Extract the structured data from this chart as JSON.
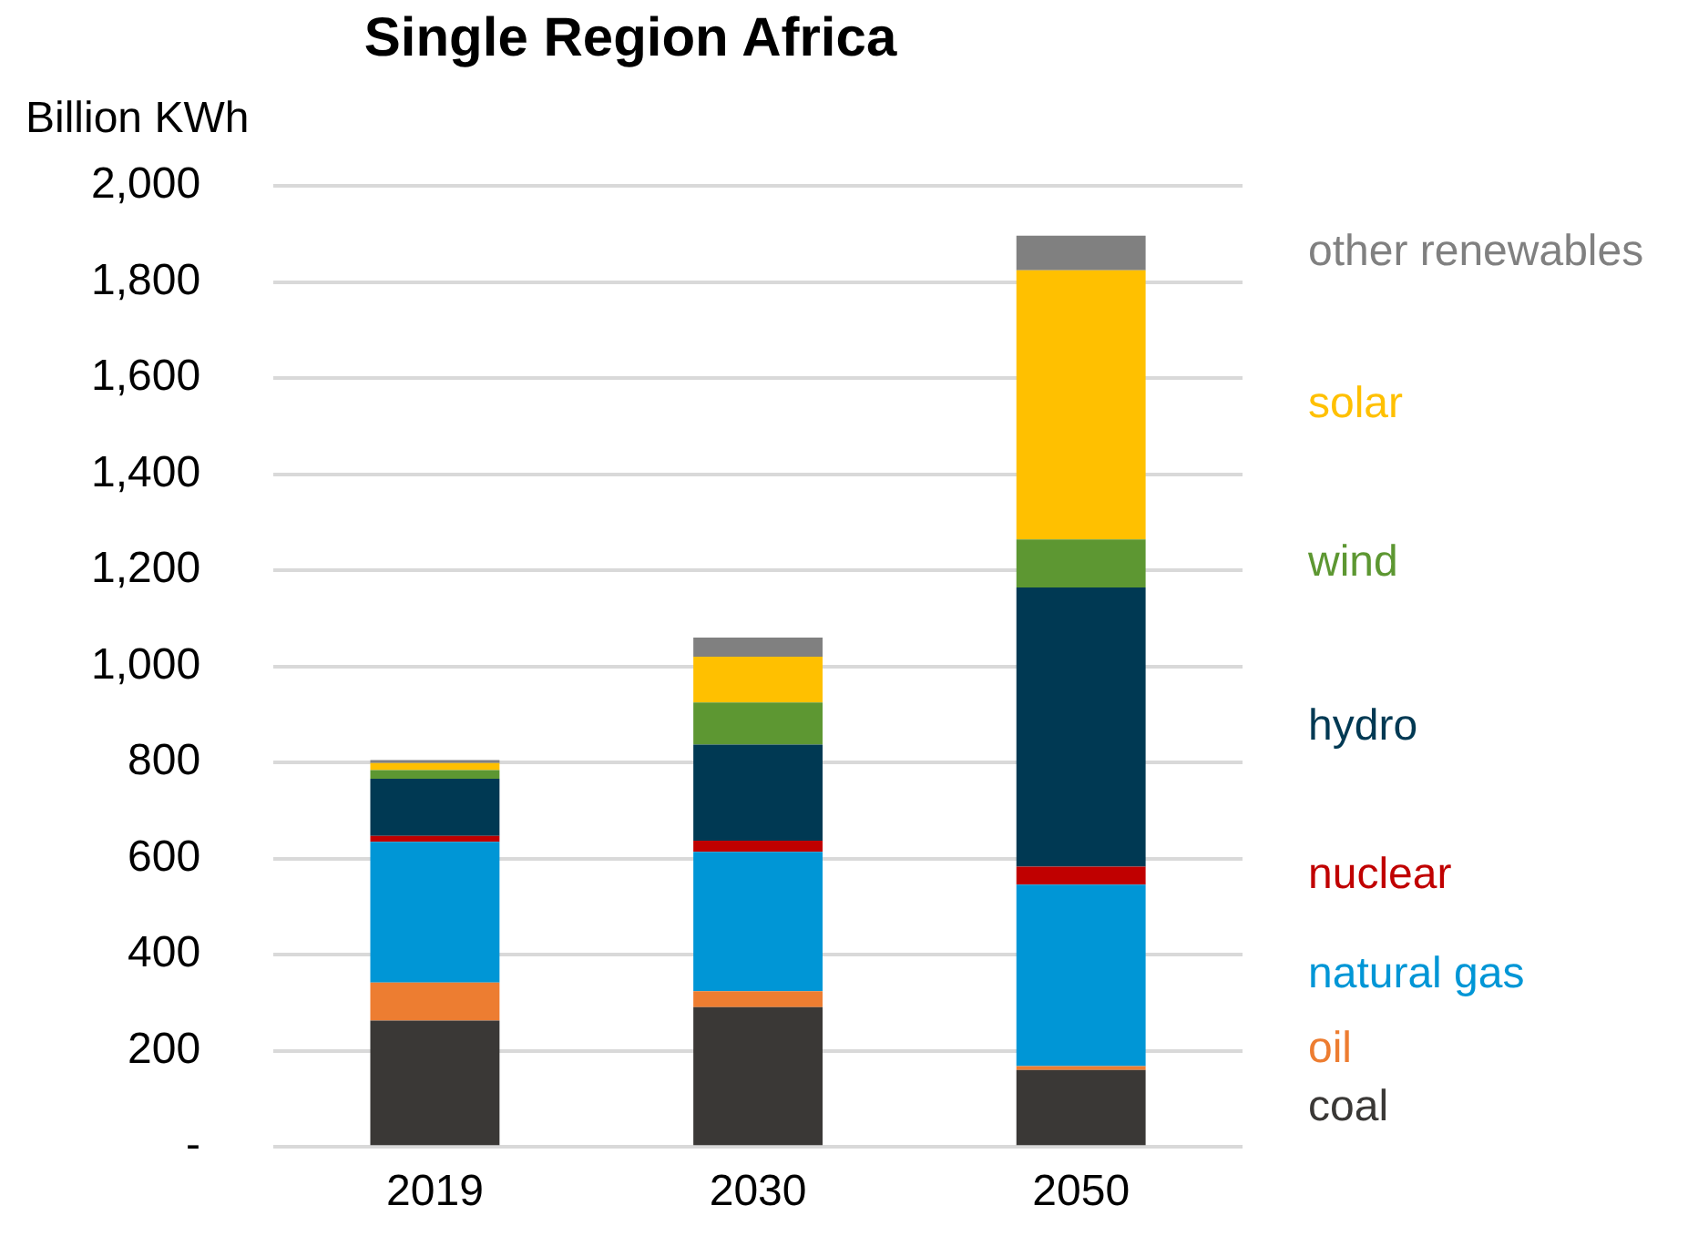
{
  "chart_data": {
    "type": "bar",
    "stacked": true,
    "title": "Single Region Africa",
    "ylabel": "Billion KWh",
    "categories": [
      "2019",
      "2030",
      "2050"
    ],
    "series": [
      {
        "name": "coal",
        "color": "#3a3836",
        "values": [
          263,
          291,
          160
        ]
      },
      {
        "name": "oil",
        "color": "#ed7d31",
        "values": [
          79,
          33,
          8
        ]
      },
      {
        "name": "natural gas",
        "color": "#0096d6",
        "values": [
          293,
          290,
          378
        ]
      },
      {
        "name": "nuclear",
        "color": "#c00000",
        "values": [
          12,
          23,
          37
        ]
      },
      {
        "name": "hydro",
        "color": "#003953",
        "values": [
          119,
          200,
          581
        ]
      },
      {
        "name": "wind",
        "color": "#5d9732",
        "values": [
          18,
          88,
          100
        ]
      },
      {
        "name": "solar",
        "color": "#ffc000",
        "values": [
          15,
          95,
          560
        ]
      },
      {
        "name": "other renewables",
        "color": "#808080",
        "values": [
          6,
          40,
          72
        ]
      }
    ],
    "ylim": [
      0,
      2000
    ],
    "yticks": [
      {
        "value": 0,
        "label": "-"
      },
      200,
      400,
      600,
      800,
      {
        "value": 1000,
        "label": "1,000"
      },
      {
        "value": 1200,
        "label": "1,200"
      },
      {
        "value": 1400,
        "label": "1,400"
      },
      {
        "value": 1600,
        "label": "1,600"
      },
      {
        "value": 1800,
        "label": "1,800"
      },
      {
        "value": 2000,
        "label": "2,000"
      }
    ],
    "grid": "y",
    "legend": false
  }
}
